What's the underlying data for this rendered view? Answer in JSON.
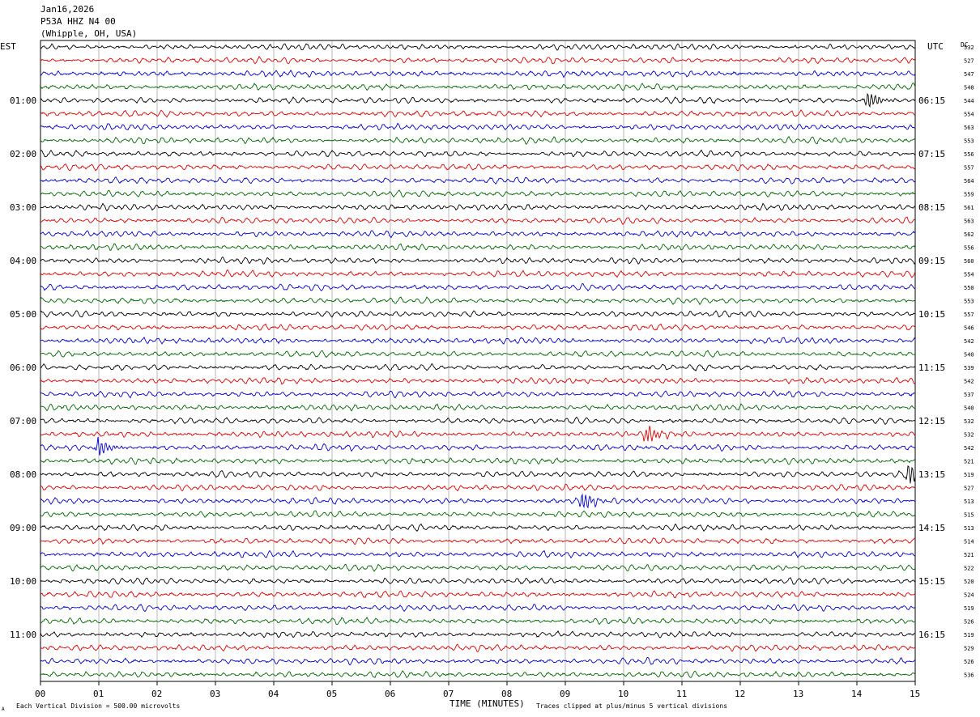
{
  "header": {
    "date": "Jan16,2026",
    "station": "P53A HHZ N4 00",
    "location": "(Whipple, OH, USA)"
  },
  "left_tz": "EST",
  "right_tz": "UTC",
  "dc_label": "DC",
  "footer": {
    "scale": "Each Vertical Division =  500.00 microvolts",
    "clip_note": "Traces clipped at plus/minus 5 vertical divisions",
    "corner_mark": "A"
  },
  "colors": {
    "trace_cycle": [
      "#000000",
      "#dd0000",
      "#0000cc",
      "#006600"
    ],
    "grid": "#888888"
  },
  "chart_data": {
    "type": "line",
    "xlabel": "TIME (MINUTES)",
    "xlim": [
      0,
      15
    ],
    "x_ticks": [
      "00",
      "01",
      "02",
      "03",
      "04",
      "05",
      "06",
      "07",
      "08",
      "09",
      "10",
      "11",
      "12",
      "13",
      "14",
      "15"
    ],
    "left_hour_labels": [
      "01:00",
      "02:00",
      "03:00",
      "04:00",
      "05:00",
      "06:00",
      "07:00",
      "08:00",
      "09:00",
      "10:00",
      "11:00"
    ],
    "right_hour_labels": [
      "06:15",
      "07:15",
      "08:15",
      "09:15",
      "10:15",
      "11:15",
      "12:15",
      "13:15",
      "14:15",
      "15:15",
      "16:15"
    ],
    "hour_label_rows": [
      4,
      8,
      12,
      16,
      20,
      24,
      28,
      32,
      36,
      40,
      44
    ],
    "dc_offsets": [
      532,
      527,
      547,
      548,
      544,
      554,
      563,
      553,
      556,
      557,
      564,
      559,
      561,
      563,
      562,
      556,
      560,
      554,
      550,
      553,
      557,
      546,
      542,
      540,
      539,
      542,
      537,
      540,
      532,
      532,
      542,
      521,
      519,
      527,
      513,
      515,
      513,
      514,
      521,
      522,
      520,
      524,
      519,
      526,
      519,
      529,
      526,
      536
    ],
    "grid": true,
    "events": [
      {
        "row": 4,
        "minute": 14.2
      },
      {
        "row": 29,
        "minute": 10.4
      },
      {
        "row": 30,
        "minute": 1.0
      },
      {
        "row": 32,
        "minute": 14.9
      },
      {
        "row": 34,
        "minute": 9.3
      }
    ]
  }
}
